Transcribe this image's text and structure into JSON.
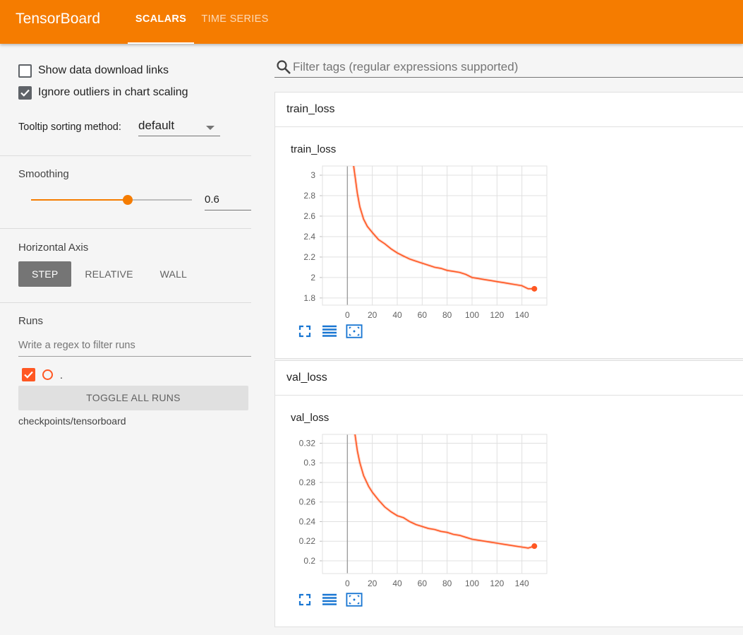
{
  "app": {
    "title": "TensorBoard"
  },
  "tabs": [
    {
      "label": "SCALARS",
      "active": true
    },
    {
      "label": "TIME SERIES",
      "active": false
    }
  ],
  "sidebar": {
    "show_download_links": {
      "label": "Show data download links",
      "checked": false
    },
    "ignore_outliers": {
      "label": "Ignore outliers in chart scaling",
      "checked": true
    },
    "tooltip_sorting": {
      "label": "Tooltip sorting method:",
      "value": "default"
    },
    "smoothing": {
      "title": "Smoothing",
      "value": 0.6,
      "value_text": "0.6"
    },
    "horizontal_axis": {
      "title": "Horizontal Axis",
      "options": [
        "STEP",
        "RELATIVE",
        "WALL"
      ],
      "selected": "STEP"
    },
    "runs": {
      "title": "Runs",
      "filter_placeholder": "Write a regex to filter runs",
      "items": [
        {
          "name": ".",
          "checked": true,
          "color": "#ff5722"
        }
      ],
      "toggle_label": "TOGGLE ALL RUNS",
      "logdir": "checkpoints/tensorboard"
    }
  },
  "main": {
    "filter_placeholder": "Filter tags (regular expressions supported)",
    "groups": [
      {
        "title": "train_loss"
      },
      {
        "title": "val_loss"
      }
    ]
  },
  "colors": {
    "accent": "#f57c00",
    "run": "#ff5722",
    "icon_blue": "#1976d2"
  },
  "chart_data": [
    {
      "type": "line",
      "title": "train_loss",
      "xlabel": "",
      "ylabel": "",
      "xlim": [
        -20,
        160
      ],
      "ylim": [
        1.73,
        3.09
      ],
      "xticks": [
        0,
        20,
        40,
        60,
        80,
        100,
        120,
        140
      ],
      "yticks": [
        1.8,
        2,
        2.2,
        2.4,
        2.6,
        2.8,
        3
      ],
      "ytick_labels": [
        "1.8",
        "2",
        "2.2",
        "2.4",
        "2.6",
        "2.8",
        "3"
      ],
      "grid": true,
      "series": [
        {
          "color": "#ff5722",
          "x": [
            5,
            8,
            10,
            13,
            16,
            20,
            25,
            30,
            35,
            40,
            45,
            50,
            55,
            60,
            65,
            70,
            75,
            80,
            85,
            90,
            95,
            100,
            105,
            110,
            115,
            120,
            125,
            130,
            135,
            140,
            145,
            150
          ],
          "values": [
            3.09,
            2.82,
            2.69,
            2.57,
            2.5,
            2.44,
            2.37,
            2.33,
            2.28,
            2.24,
            2.21,
            2.18,
            2.16,
            2.14,
            2.12,
            2.1,
            2.09,
            2.07,
            2.06,
            2.05,
            2.03,
            2.0,
            1.99,
            1.98,
            1.97,
            1.96,
            1.95,
            1.94,
            1.93,
            1.92,
            1.89,
            1.89
          ]
        }
      ]
    },
    {
      "type": "line",
      "title": "val_loss",
      "xlabel": "",
      "ylabel": "",
      "xlim": [
        -20,
        160
      ],
      "ylim": [
        0.187,
        0.329
      ],
      "xticks": [
        0,
        20,
        40,
        60,
        80,
        100,
        120,
        140
      ],
      "yticks": [
        0.2,
        0.22,
        0.24,
        0.26,
        0.28,
        0.3,
        0.32
      ],
      "ytick_labels": [
        "0.2",
        "0.22",
        "0.24",
        "0.26",
        "0.28",
        "0.3",
        "0.32"
      ],
      "grid": true,
      "series": [
        {
          "color": "#ff5722",
          "x": [
            6,
            8,
            10,
            13,
            17,
            20,
            25,
            30,
            35,
            40,
            45,
            50,
            55,
            60,
            65,
            70,
            75,
            80,
            85,
            90,
            95,
            100,
            105,
            110,
            115,
            120,
            125,
            130,
            135,
            140,
            145,
            150
          ],
          "values": [
            0.33,
            0.312,
            0.3,
            0.287,
            0.276,
            0.27,
            0.262,
            0.255,
            0.25,
            0.246,
            0.244,
            0.24,
            0.237,
            0.235,
            0.233,
            0.232,
            0.23,
            0.229,
            0.227,
            0.226,
            0.224,
            0.222,
            0.221,
            0.22,
            0.219,
            0.218,
            0.217,
            0.216,
            0.215,
            0.214,
            0.213,
            0.215
          ]
        }
      ]
    }
  ]
}
